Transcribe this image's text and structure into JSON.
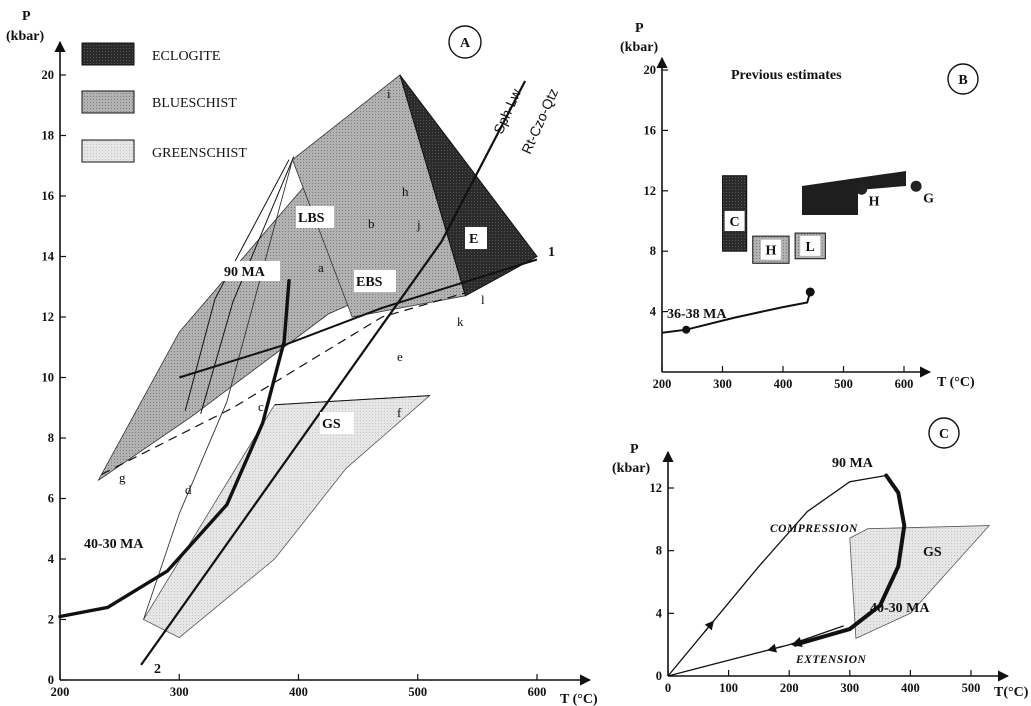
{
  "chart_data": [
    {
      "panel": "A",
      "type": "diagram",
      "xlabel": "T (°C)",
      "ylabel": "P (kbar)",
      "xlim": [
        200,
        640
      ],
      "ylim": [
        0,
        21
      ],
      "xticks": [
        200,
        300,
        400,
        500,
        600
      ],
      "yticks": [
        0,
        2,
        4,
        6,
        8,
        10,
        12,
        14,
        16,
        18,
        20
      ],
      "legend": [
        {
          "label": "ECLOGITE",
          "color": "#2a2a2a"
        },
        {
          "label": "BLUESCHIST",
          "color": "#a9a9a9"
        },
        {
          "label": "GREENSCHIST",
          "color": "#dcdcdc"
        }
      ],
      "fields": [
        {
          "name": "LBS",
          "color": "#a9a9a9",
          "points": [
            [
              232,
              6.6
            ],
            [
              300,
              11.5
            ],
            [
              485,
              20
            ],
            [
              465,
              12.8
            ],
            [
              425,
              12.1
            ],
            [
              310,
              8.7
            ]
          ]
        },
        {
          "name": "EBS",
          "color": "#9a9a9a",
          "points": [
            [
              395,
              17.2
            ],
            [
              485,
              20
            ],
            [
              540,
              12.7
            ],
            [
              445,
              12
            ]
          ]
        },
        {
          "name": "E",
          "color": "#262626",
          "points": [
            [
              485,
              20
            ],
            [
              600,
              14
            ],
            [
              540,
              12.7
            ]
          ]
        },
        {
          "name": "GS",
          "color": "#dedede",
          "points": [
            [
              270,
              2
            ],
            [
              380,
              9.1
            ],
            [
              510,
              9.4
            ],
            [
              440,
              7
            ],
            [
              380,
              4
            ],
            [
              300,
              1.4
            ]
          ]
        }
      ],
      "lines": [
        {
          "name": "Sph-Lw / Rt-Czo-Qtz",
          "points": [
            [
              268,
              0.5
            ],
            [
              520,
              14.5
            ],
            [
              590,
              19.8
            ]
          ]
        },
        {
          "name": "1",
          "points": [
            [
              300,
              10
            ],
            [
              390,
              11.1
            ],
            [
              470,
              12.3
            ],
            [
              600,
              13.9
            ]
          ]
        },
        {
          "name": "g",
          "points": [
            [
              235,
              6.8
            ],
            [
              345,
              9
            ],
            [
              470,
              12
            ],
            [
              540,
              12.8
            ]
          ],
          "dashed": true
        },
        {
          "name": "a",
          "points": [
            [
              305,
              8.9
            ],
            [
              330,
              12.6
            ],
            [
              392,
              17.2
            ]
          ]
        },
        {
          "name": "b",
          "points": [
            [
              318,
              8.8
            ],
            [
              345,
              12.5
            ],
            [
              396,
              17.3
            ]
          ]
        },
        {
          "name": "d",
          "points": [
            [
              270,
              2
            ],
            [
              300,
              5.5
            ],
            [
              340,
              9.2
            ],
            [
              395,
              17.2
            ]
          ]
        },
        {
          "name": "f",
          "points": [
            [
              380,
              9.1
            ],
            [
              510,
              9.4
            ]
          ]
        }
      ],
      "curves": [
        {
          "name": "40-30 MA",
          "points": [
            [
              200,
              2.1
            ],
            [
              240,
              2.4
            ],
            [
              290,
              3.6
            ],
            [
              340,
              5.8
            ],
            [
              370,
              8.5
            ],
            [
              388,
              11.2
            ],
            [
              392,
              13.2
            ]
          ]
        }
      ],
      "labels": {
        "panel": "A",
        "LBS": "LBS",
        "EBS": "EBS",
        "E": "E",
        "GS": "GS",
        "ma90": "90 MA",
        "ma4030": "40-30 MA",
        "sph": "Sph-Lw",
        "rt": "Rt-Czo-Qtz",
        "one": "1",
        "two": "2",
        "a": "a",
        "b": "b",
        "c": "c",
        "d": "d",
        "e": "e",
        "f": "f",
        "g": "g",
        "h": "h",
        "i": "i",
        "j": "j",
        "k": "k",
        "l": "l"
      }
    },
    {
      "panel": "B",
      "type": "diagram",
      "title": "Previous estimates",
      "xlabel": "T (°C)",
      "ylabel": "P (kbar)",
      "xlim": [
        200,
        660
      ],
      "ylim": [
        0,
        21
      ],
      "xticks": [
        200,
        300,
        400,
        500,
        600
      ],
      "yticks": [
        4,
        8,
        12,
        16,
        20
      ],
      "boxes": [
        {
          "label": "C",
          "x": [
            300,
            340
          ],
          "y": [
            8,
            13
          ],
          "style": "dark"
        },
        {
          "label": "H",
          "x": [
            350,
            410
          ],
          "y": [
            7.2,
            9
          ],
          "style": "hatch"
        },
        {
          "label": "L",
          "x": [
            420,
            470
          ],
          "y": [
            7.5,
            9.2
          ],
          "style": "hatch"
        },
        {
          "label": "L",
          "x": [
            430,
            510
          ],
          "y": [
            10.8,
            12.5
          ],
          "style": "dark"
        }
      ],
      "estimates": [
        {
          "label": "H",
          "x": 530,
          "y": 12.1
        },
        {
          "label": "G",
          "x": 620,
          "y": 12.3
        }
      ],
      "curve": {
        "name": "36-38 MA",
        "points": [
          [
            200,
            2.6
          ],
          [
            240,
            2.8
          ],
          [
            320,
            3.6
          ],
          [
            400,
            4.3
          ],
          [
            440,
            4.6
          ],
          [
            445,
            5.3
          ]
        ]
      },
      "labels": {
        "panel": "B",
        "ma": "36-38 MA"
      }
    },
    {
      "panel": "C",
      "type": "diagram",
      "xlabel": "T(°C)",
      "ylabel": "P (kbar)",
      "xlim": [
        0,
        540
      ],
      "ylim": [
        0,
        14
      ],
      "xticks": [
        0,
        100,
        200,
        300,
        400,
        500
      ],
      "yticks": [
        0,
        4,
        8,
        12
      ],
      "field": {
        "name": "GS",
        "points": [
          [
            300,
            8.8
          ],
          [
            330,
            9.4
          ],
          [
            530,
            9.6
          ],
          [
            400,
            4
          ],
          [
            310,
            2.4
          ]
        ]
      },
      "paths": [
        {
          "name": "COMPRESSION",
          "points": [
            [
              0,
              0
            ],
            [
              150,
              7
            ],
            [
              230,
              10.5
            ],
            [
              300,
              12.4
            ],
            [
              360,
              12.8
            ]
          ]
        },
        {
          "name": "EXTENSION",
          "points": [
            [
              0,
              0
            ],
            [
              100,
              1
            ],
            [
              200,
              2
            ],
            [
              290,
              3.2
            ]
          ]
        }
      ],
      "retrograde": {
        "name": "40-30 MA",
        "points": [
          [
            360,
            12.8
          ],
          [
            380,
            11.7
          ],
          [
            390,
            9.6
          ],
          [
            380,
            7
          ],
          [
            350,
            4.5
          ],
          [
            300,
            3
          ],
          [
            210,
            2
          ]
        ]
      },
      "labels": {
        "panel": "C",
        "ma90": "90 MA",
        "ma4030": "40-30 MA",
        "gs": "GS",
        "comp": "COMPRESSION",
        "ext": "EXTENSION"
      }
    }
  ]
}
